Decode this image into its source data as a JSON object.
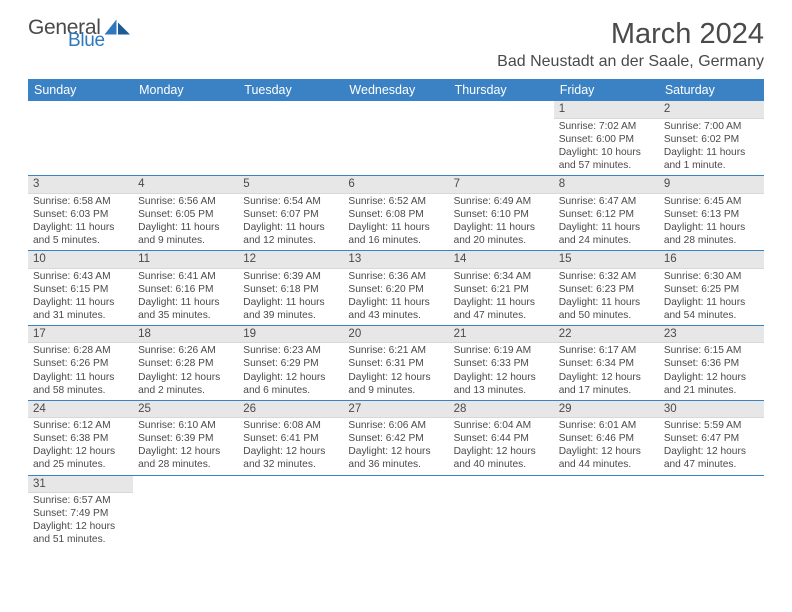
{
  "brand": {
    "part1": "General",
    "part2": "Blue"
  },
  "title": "March 2024",
  "location": "Bad Neustadt an der Saale, Germany",
  "colors": {
    "header_bg": "#3b82c4",
    "header_text": "#ffffff",
    "daynum_bg": "#e7e7e7",
    "week_border": "#3b82c4",
    "text": "#4a4a4a",
    "page_bg": "#ffffff"
  },
  "dow": [
    "Sunday",
    "Monday",
    "Tuesday",
    "Wednesday",
    "Thursday",
    "Friday",
    "Saturday"
  ],
  "weeks": [
    [
      null,
      null,
      null,
      null,
      null,
      {
        "n": "1",
        "sr": "Sunrise: 7:02 AM",
        "ss": "Sunset: 6:00 PM",
        "dl1": "Daylight: 10 hours",
        "dl2": "and 57 minutes."
      },
      {
        "n": "2",
        "sr": "Sunrise: 7:00 AM",
        "ss": "Sunset: 6:02 PM",
        "dl1": "Daylight: 11 hours",
        "dl2": "and 1 minute."
      }
    ],
    [
      {
        "n": "3",
        "sr": "Sunrise: 6:58 AM",
        "ss": "Sunset: 6:03 PM",
        "dl1": "Daylight: 11 hours",
        "dl2": "and 5 minutes."
      },
      {
        "n": "4",
        "sr": "Sunrise: 6:56 AM",
        "ss": "Sunset: 6:05 PM",
        "dl1": "Daylight: 11 hours",
        "dl2": "and 9 minutes."
      },
      {
        "n": "5",
        "sr": "Sunrise: 6:54 AM",
        "ss": "Sunset: 6:07 PM",
        "dl1": "Daylight: 11 hours",
        "dl2": "and 12 minutes."
      },
      {
        "n": "6",
        "sr": "Sunrise: 6:52 AM",
        "ss": "Sunset: 6:08 PM",
        "dl1": "Daylight: 11 hours",
        "dl2": "and 16 minutes."
      },
      {
        "n": "7",
        "sr": "Sunrise: 6:49 AM",
        "ss": "Sunset: 6:10 PM",
        "dl1": "Daylight: 11 hours",
        "dl2": "and 20 minutes."
      },
      {
        "n": "8",
        "sr": "Sunrise: 6:47 AM",
        "ss": "Sunset: 6:12 PM",
        "dl1": "Daylight: 11 hours",
        "dl2": "and 24 minutes."
      },
      {
        "n": "9",
        "sr": "Sunrise: 6:45 AM",
        "ss": "Sunset: 6:13 PM",
        "dl1": "Daylight: 11 hours",
        "dl2": "and 28 minutes."
      }
    ],
    [
      {
        "n": "10",
        "sr": "Sunrise: 6:43 AM",
        "ss": "Sunset: 6:15 PM",
        "dl1": "Daylight: 11 hours",
        "dl2": "and 31 minutes."
      },
      {
        "n": "11",
        "sr": "Sunrise: 6:41 AM",
        "ss": "Sunset: 6:16 PM",
        "dl1": "Daylight: 11 hours",
        "dl2": "and 35 minutes."
      },
      {
        "n": "12",
        "sr": "Sunrise: 6:39 AM",
        "ss": "Sunset: 6:18 PM",
        "dl1": "Daylight: 11 hours",
        "dl2": "and 39 minutes."
      },
      {
        "n": "13",
        "sr": "Sunrise: 6:36 AM",
        "ss": "Sunset: 6:20 PM",
        "dl1": "Daylight: 11 hours",
        "dl2": "and 43 minutes."
      },
      {
        "n": "14",
        "sr": "Sunrise: 6:34 AM",
        "ss": "Sunset: 6:21 PM",
        "dl1": "Daylight: 11 hours",
        "dl2": "and 47 minutes."
      },
      {
        "n": "15",
        "sr": "Sunrise: 6:32 AM",
        "ss": "Sunset: 6:23 PM",
        "dl1": "Daylight: 11 hours",
        "dl2": "and 50 minutes."
      },
      {
        "n": "16",
        "sr": "Sunrise: 6:30 AM",
        "ss": "Sunset: 6:25 PM",
        "dl1": "Daylight: 11 hours",
        "dl2": "and 54 minutes."
      }
    ],
    [
      {
        "n": "17",
        "sr": "Sunrise: 6:28 AM",
        "ss": "Sunset: 6:26 PM",
        "dl1": "Daylight: 11 hours",
        "dl2": "and 58 minutes."
      },
      {
        "n": "18",
        "sr": "Sunrise: 6:26 AM",
        "ss": "Sunset: 6:28 PM",
        "dl1": "Daylight: 12 hours",
        "dl2": "and 2 minutes."
      },
      {
        "n": "19",
        "sr": "Sunrise: 6:23 AM",
        "ss": "Sunset: 6:29 PM",
        "dl1": "Daylight: 12 hours",
        "dl2": "and 6 minutes."
      },
      {
        "n": "20",
        "sr": "Sunrise: 6:21 AM",
        "ss": "Sunset: 6:31 PM",
        "dl1": "Daylight: 12 hours",
        "dl2": "and 9 minutes."
      },
      {
        "n": "21",
        "sr": "Sunrise: 6:19 AM",
        "ss": "Sunset: 6:33 PM",
        "dl1": "Daylight: 12 hours",
        "dl2": "and 13 minutes."
      },
      {
        "n": "22",
        "sr": "Sunrise: 6:17 AM",
        "ss": "Sunset: 6:34 PM",
        "dl1": "Daylight: 12 hours",
        "dl2": "and 17 minutes."
      },
      {
        "n": "23",
        "sr": "Sunrise: 6:15 AM",
        "ss": "Sunset: 6:36 PM",
        "dl1": "Daylight: 12 hours",
        "dl2": "and 21 minutes."
      }
    ],
    [
      {
        "n": "24",
        "sr": "Sunrise: 6:12 AM",
        "ss": "Sunset: 6:38 PM",
        "dl1": "Daylight: 12 hours",
        "dl2": "and 25 minutes."
      },
      {
        "n": "25",
        "sr": "Sunrise: 6:10 AM",
        "ss": "Sunset: 6:39 PM",
        "dl1": "Daylight: 12 hours",
        "dl2": "and 28 minutes."
      },
      {
        "n": "26",
        "sr": "Sunrise: 6:08 AM",
        "ss": "Sunset: 6:41 PM",
        "dl1": "Daylight: 12 hours",
        "dl2": "and 32 minutes."
      },
      {
        "n": "27",
        "sr": "Sunrise: 6:06 AM",
        "ss": "Sunset: 6:42 PM",
        "dl1": "Daylight: 12 hours",
        "dl2": "and 36 minutes."
      },
      {
        "n": "28",
        "sr": "Sunrise: 6:04 AM",
        "ss": "Sunset: 6:44 PM",
        "dl1": "Daylight: 12 hours",
        "dl2": "and 40 minutes."
      },
      {
        "n": "29",
        "sr": "Sunrise: 6:01 AM",
        "ss": "Sunset: 6:46 PM",
        "dl1": "Daylight: 12 hours",
        "dl2": "and 44 minutes."
      },
      {
        "n": "30",
        "sr": "Sunrise: 5:59 AM",
        "ss": "Sunset: 6:47 PM",
        "dl1": "Daylight: 12 hours",
        "dl2": "and 47 minutes."
      }
    ],
    [
      {
        "n": "31",
        "sr": "Sunrise: 6:57 AM",
        "ss": "Sunset: 7:49 PM",
        "dl1": "Daylight: 12 hours",
        "dl2": "and 51 minutes."
      },
      null,
      null,
      null,
      null,
      null,
      null
    ]
  ]
}
